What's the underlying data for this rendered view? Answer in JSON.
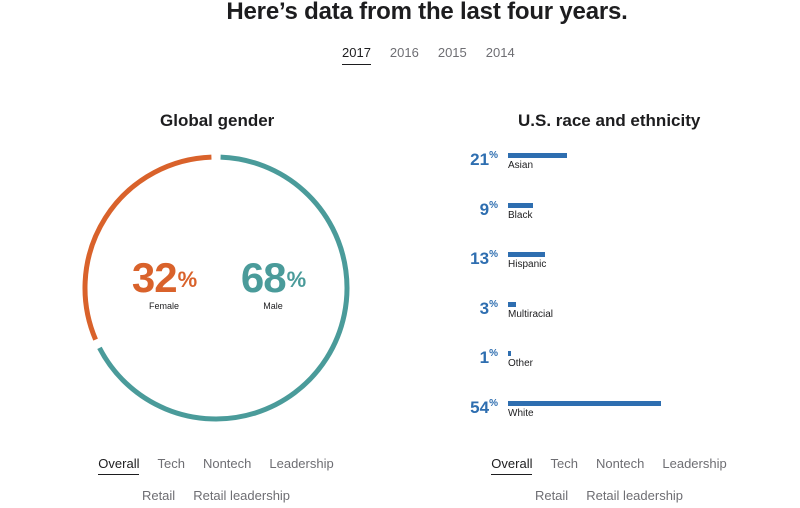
{
  "headline": "Here’s data from the last four years.",
  "years": [
    "2017",
    "2016",
    "2015",
    "2014"
  ],
  "active_year": "2017",
  "gender": {
    "title": "Global gender",
    "female": {
      "value": "32",
      "unit": "%",
      "label": "Female"
    },
    "male": {
      "value": "68",
      "unit": "%",
      "label": "Male"
    }
  },
  "race": {
    "title": "U.S. race and ethnicity",
    "items": [
      {
        "value": "21",
        "unit": "%",
        "label": "Asian"
      },
      {
        "value": "9",
        "unit": "%",
        "label": "Black"
      },
      {
        "value": "13",
        "unit": "%",
        "label": "Hispanic"
      },
      {
        "value": "3",
        "unit": "%",
        "label": "Multiracial"
      },
      {
        "value": "1",
        "unit": "%",
        "label": "Other"
      },
      {
        "value": "54",
        "unit": "%",
        "label": "White"
      }
    ]
  },
  "filters": {
    "row1": [
      "Overall",
      "Tech",
      "Nontech",
      "Leadership"
    ],
    "row2": [
      "Retail",
      "Retail leadership"
    ],
    "active": "Overall"
  },
  "colors": {
    "female": "#d9622b",
    "male": "#4a9b9a",
    "race": "#2e6eb0"
  },
  "chart_data": [
    {
      "type": "pie",
      "title": "Global gender",
      "categories": [
        "Female",
        "Male"
      ],
      "values": [
        32,
        68
      ],
      "unit": "%"
    },
    {
      "type": "bar",
      "title": "U.S. race and ethnicity",
      "categories": [
        "Asian",
        "Black",
        "Hispanic",
        "Multiracial",
        "Other",
        "White"
      ],
      "values": [
        21,
        9,
        13,
        3,
        1,
        54
      ],
      "unit": "%",
      "orientation": "horizontal"
    }
  ]
}
